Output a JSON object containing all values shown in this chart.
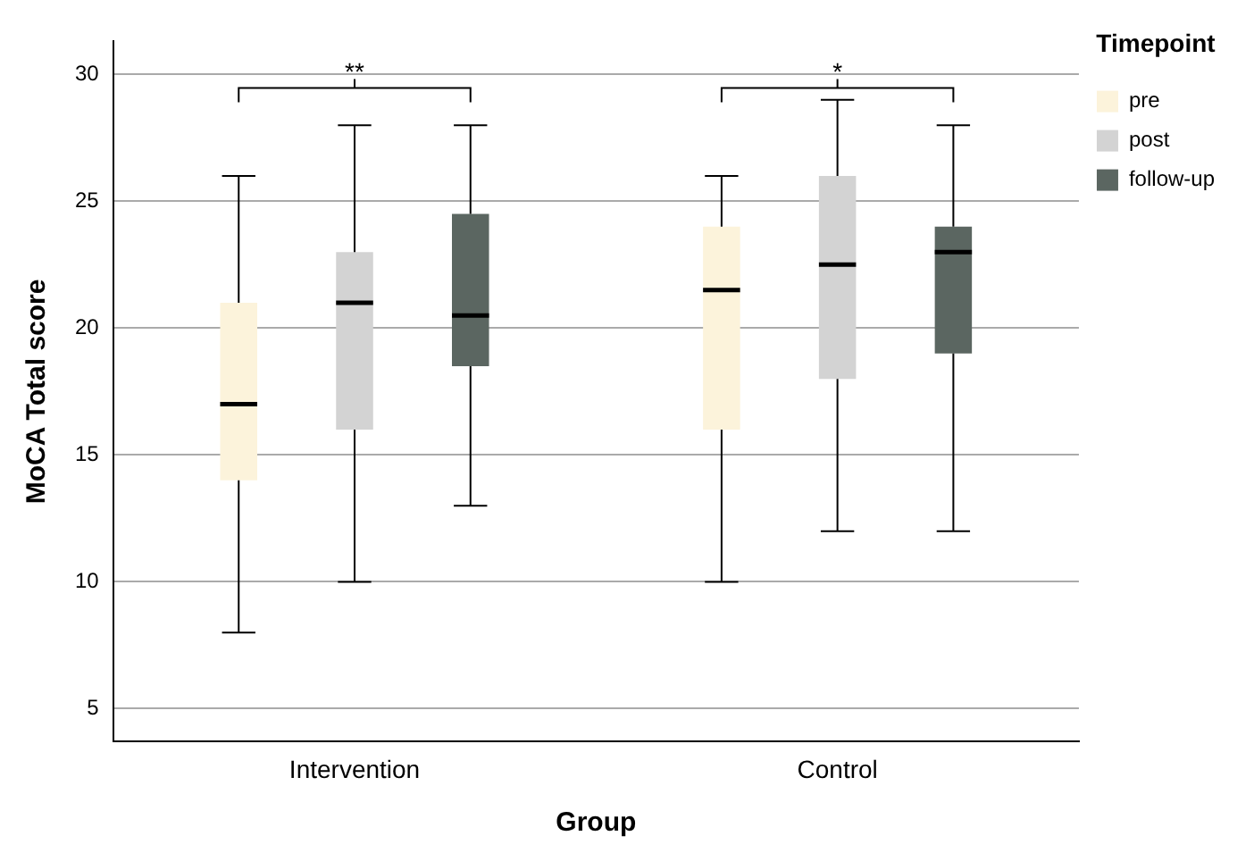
{
  "chart_data": {
    "type": "box",
    "xlabel": "Group",
    "ylabel": "MoCA Total score",
    "legend_title": "Timepoint",
    "legend": "top right",
    "grid": "y",
    "categories": [
      "Intervention",
      "Control"
    ],
    "ylim": [
      3.7,
      31.3
    ],
    "yticks": [
      5,
      10,
      15,
      20,
      25,
      30
    ],
    "annotations": [
      "**",
      "*"
    ],
    "series": [
      {
        "name": "pre",
        "color": "#fcf3db",
        "boxes": [
          {
            "low": 8,
            "q1": 14,
            "median": 17,
            "q3": 21,
            "high": 26
          },
          {
            "low": 10,
            "q1": 16,
            "median": 21.5,
            "q3": 24,
            "high": 26
          }
        ]
      },
      {
        "name": "post",
        "color": "#d3d3d3",
        "boxes": [
          {
            "low": 10,
            "q1": 16,
            "median": 21,
            "q3": 23,
            "high": 28
          },
          {
            "low": 12,
            "q1": 18,
            "median": 22.5,
            "q3": 26,
            "high": 29
          }
        ]
      },
      {
        "name": "follow-up",
        "color": "#5b6661",
        "boxes": [
          {
            "low": 13,
            "q1": 18.5,
            "median": 20.5,
            "q3": 24.5,
            "high": 28
          },
          {
            "low": 12,
            "q1": 19,
            "median": 23,
            "q3": 24,
            "high": 28
          }
        ]
      }
    ]
  }
}
